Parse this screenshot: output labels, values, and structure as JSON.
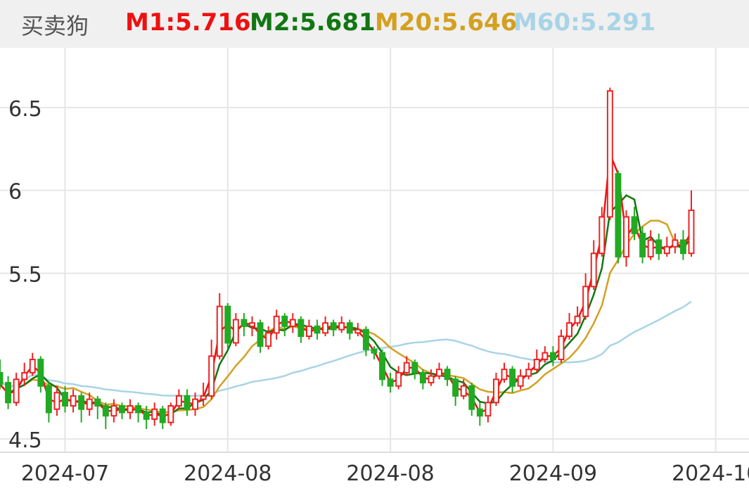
{
  "header": {
    "title": "买卖狗",
    "indicators": [
      {
        "label": "M1:5.716",
        "color": "#ee1111"
      },
      {
        "label": "M2:5.681",
        "color": "#117711"
      },
      {
        "label": "M20:5.646",
        "color": "#d4a020"
      },
      {
        "label": "M60:5.291",
        "color": "#a8d4e6"
      }
    ]
  },
  "chart_data": {
    "type": "candlestick",
    "y_ticks": [
      4.5,
      5.5,
      6,
      6.5
    ],
    "y_tick_labels": [
      "4.5",
      "5.5",
      "6",
      "6.5"
    ],
    "ylim": [
      4.42,
      6.86
    ],
    "x_tick_labels": [
      "2024-07",
      "2024-08",
      "2024-08",
      "2024-09",
      "2024-10"
    ],
    "x_tick_index": [
      8,
      28,
      48,
      68,
      88
    ],
    "grid": true,
    "candles": [
      [
        4.9,
        4.83,
        4.98,
        4.8
      ],
      [
        4.84,
        4.72,
        4.88,
        4.68
      ],
      [
        4.72,
        4.86,
        4.9,
        4.7
      ],
      [
        4.86,
        4.9,
        4.96,
        4.82
      ],
      [
        4.9,
        4.98,
        5.02,
        4.88
      ],
      [
        4.98,
        4.82,
        5,
        4.78
      ],
      [
        4.82,
        4.66,
        4.84,
        4.6
      ],
      [
        4.68,
        4.78,
        4.82,
        4.64
      ],
      [
        4.78,
        4.7,
        4.82,
        4.66
      ],
      [
        4.7,
        4.76,
        4.8,
        4.66
      ],
      [
        4.76,
        4.68,
        4.78,
        4.6
      ],
      [
        4.68,
        4.74,
        4.78,
        4.64
      ],
      [
        4.74,
        4.7,
        4.76,
        4.62
      ],
      [
        4.7,
        4.64,
        4.72,
        4.56
      ],
      [
        4.64,
        4.7,
        4.74,
        4.6
      ],
      [
        4.7,
        4.66,
        4.72,
        4.62
      ],
      [
        4.66,
        4.7,
        4.74,
        4.62
      ],
      [
        4.7,
        4.66,
        4.72,
        4.6
      ],
      [
        4.66,
        4.62,
        4.7,
        4.56
      ],
      [
        4.62,
        4.68,
        4.72,
        4.58
      ],
      [
        4.68,
        4.6,
        4.7,
        4.56
      ],
      [
        4.6,
        4.7,
        4.72,
        4.58
      ],
      [
        4.7,
        4.76,
        4.8,
        4.68
      ],
      [
        4.76,
        4.68,
        4.8,
        4.64
      ],
      [
        4.68,
        4.74,
        4.78,
        4.64
      ],
      [
        4.74,
        4.76,
        4.84,
        4.7
      ],
      [
        4.76,
        5,
        5.1,
        4.74
      ],
      [
        5,
        5.3,
        5.38,
        4.98
      ],
      [
        5.3,
        5.08,
        5.32,
        5.04
      ],
      [
        5.08,
        5.22,
        5.26,
        5.06
      ],
      [
        5.22,
        5.18,
        5.26,
        5.12
      ],
      [
        5.18,
        5.2,
        5.24,
        5.12
      ],
      [
        5.2,
        5.06,
        5.22,
        5.02
      ],
      [
        5.06,
        5.14,
        5.18,
        5.04
      ],
      [
        5.14,
        5.24,
        5.28,
        5.1
      ],
      [
        5.24,
        5.18,
        5.26,
        5.12
      ],
      [
        5.18,
        5.22,
        5.26,
        5.14
      ],
      [
        5.22,
        5.12,
        5.24,
        5.08
      ],
      [
        5.12,
        5.18,
        5.22,
        5.1
      ],
      [
        5.18,
        5.14,
        5.22,
        5.1
      ],
      [
        5.14,
        5.2,
        5.24,
        5.12
      ],
      [
        5.2,
        5.16,
        5.22,
        5.12
      ],
      [
        5.16,
        5.2,
        5.24,
        5.14
      ],
      [
        5.2,
        5.14,
        5.22,
        5.1
      ],
      [
        5.14,
        5.16,
        5.2,
        5.12
      ],
      [
        5.16,
        5.04,
        5.18,
        5
      ],
      [
        5.04,
        5.02,
        5.06,
        4.98
      ],
      [
        5.02,
        4.86,
        5.04,
        4.82
      ],
      [
        4.86,
        4.82,
        4.9,
        4.78
      ],
      [
        4.82,
        4.9,
        4.94,
        4.8
      ],
      [
        4.9,
        4.96,
        5,
        4.88
      ],
      [
        4.96,
        4.9,
        4.98,
        4.86
      ],
      [
        4.9,
        4.84,
        4.92,
        4.8
      ],
      [
        4.84,
        4.88,
        4.92,
        4.82
      ],
      [
        4.88,
        4.92,
        4.96,
        4.86
      ],
      [
        4.92,
        4.86,
        4.94,
        4.82
      ],
      [
        4.86,
        4.76,
        4.88,
        4.7
      ],
      [
        4.76,
        4.82,
        4.86,
        4.74
      ],
      [
        4.82,
        4.68,
        4.84,
        4.64
      ],
      [
        4.68,
        4.64,
        4.72,
        4.58
      ],
      [
        4.64,
        4.72,
        4.76,
        4.6
      ],
      [
        4.72,
        4.86,
        4.9,
        4.7
      ],
      [
        4.86,
        4.92,
        4.96,
        4.84
      ],
      [
        4.92,
        4.82,
        4.94,
        4.78
      ],
      [
        4.82,
        4.88,
        4.92,
        4.8
      ],
      [
        4.88,
        4.92,
        4.96,
        4.86
      ],
      [
        4.92,
        4.98,
        5.04,
        4.9
      ],
      [
        4.98,
        5.02,
        5.06,
        4.96
      ],
      [
        5.02,
        4.98,
        5.06,
        4.94
      ],
      [
        4.98,
        5.12,
        5.16,
        4.96
      ],
      [
        5.12,
        5.2,
        5.26,
        5.1
      ],
      [
        5.2,
        5.24,
        5.3,
        5.18
      ],
      [
        5.24,
        5.42,
        5.5,
        5.22
      ],
      [
        5.42,
        5.62,
        5.7,
        5.4
      ],
      [
        5.62,
        5.84,
        5.9,
        5.6
      ],
      [
        5.84,
        6.6,
        6.62,
        5.82
      ],
      [
        6.1,
        5.6,
        6.12,
        5.56
      ],
      [
        5.6,
        5.84,
        5.88,
        5.54
      ],
      [
        5.84,
        5.74,
        5.9,
        5.7
      ],
      [
        5.74,
        5.6,
        5.78,
        5.56
      ],
      [
        5.6,
        5.7,
        5.76,
        5.58
      ],
      [
        5.7,
        5.62,
        5.74,
        5.58
      ],
      [
        5.62,
        5.66,
        5.72,
        5.6
      ],
      [
        5.66,
        5.7,
        5.74,
        5.62
      ],
      [
        5.7,
        5.62,
        5.76,
        5.58
      ],
      [
        5.62,
        5.88,
        6,
        5.6
      ]
    ]
  }
}
